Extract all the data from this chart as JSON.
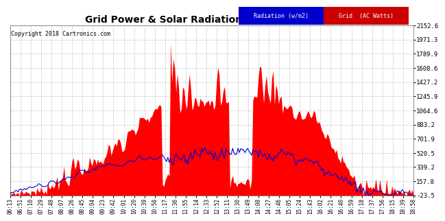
{
  "title": "Grid Power & Solar Radiation Thu May 3  19:28",
  "copyright": "Copyright 2018 Cartronics.com",
  "yticks": [
    2152.6,
    1971.3,
    1789.9,
    1608.6,
    1427.2,
    1245.9,
    1064.6,
    883.2,
    701.9,
    520.5,
    339.2,
    157.8,
    -23.5
  ],
  "ymin": -23.5,
  "ymax": 2152.6,
  "bg_color": "#ffffff",
  "grid_color": "#aaaaaa",
  "fill_color": "#ff0000",
  "line_color": "#0000cc",
  "legend_radiation_bg": "#0000cc",
  "legend_grid_bg": "#cc0000",
  "legend_radiation_text": "Radiation (w/m2)",
  "legend_grid_text": "Grid  (AC Watts)",
  "xtick_labels": [
    "06:13",
    "06:51",
    "07:10",
    "07:29",
    "07:48",
    "08:07",
    "08:26",
    "08:45",
    "09:04",
    "09:23",
    "09:42",
    "10:01",
    "10:20",
    "10:39",
    "10:58",
    "11:17",
    "11:36",
    "11:55",
    "12:14",
    "12:33",
    "12:52",
    "13:11",
    "13:30",
    "13:49",
    "14:08",
    "14:27",
    "14:46",
    "15:05",
    "15:24",
    "15:43",
    "16:02",
    "16:21",
    "16:40",
    "16:59",
    "17:18",
    "17:37",
    "17:56",
    "18:15",
    "18:39",
    "18:58"
  ]
}
